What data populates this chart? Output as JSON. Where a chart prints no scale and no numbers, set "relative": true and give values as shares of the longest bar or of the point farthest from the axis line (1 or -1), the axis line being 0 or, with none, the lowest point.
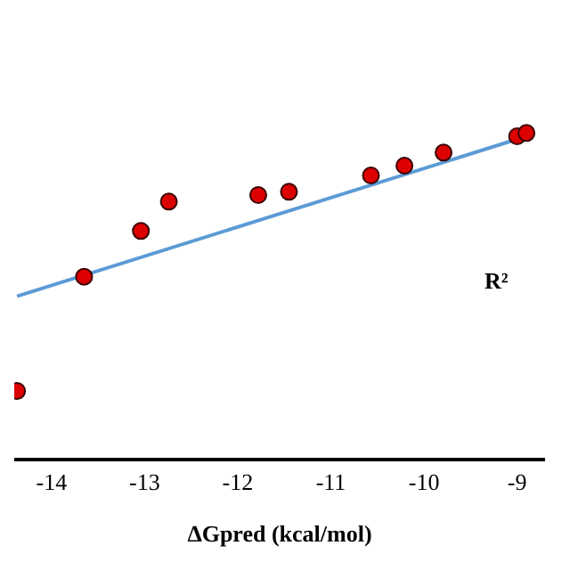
{
  "chart_data": {
    "type": "scatter",
    "xlabel": "ΔGpred (kcal/mol)",
    "relative": true,
    "xlim": [
      -14.4,
      -8.7
    ],
    "xticks": [
      -14,
      -13,
      -12,
      -11,
      -10,
      -9
    ],
    "grid": false,
    "annotations": [
      "R²"
    ],
    "series": [
      {
        "marker": "circle",
        "color": "#dd0000",
        "x": [
          -14.37,
          -13.65,
          -13.04,
          -12.74,
          -11.78,
          -11.45,
          -10.57,
          -10.21,
          -9.79,
          -9.0,
          -8.9
        ],
        "values": [
          0.21,
          0.56,
          0.7,
          0.79,
          0.81,
          0.82,
          0.87,
          0.9,
          0.94,
          0.99,
          1.0
        ]
      },
      {
        "type": "line",
        "marker": "none",
        "color": "#5b9bd5",
        "x": [
          -14.37,
          -8.9
        ],
        "values": [
          0.5,
          0.99
        ]
      }
    ]
  }
}
